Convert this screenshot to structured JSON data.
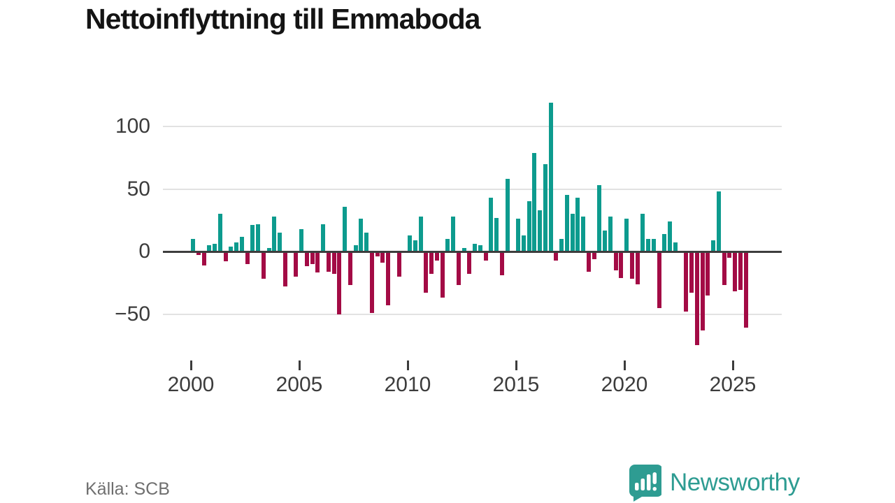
{
  "title": "Nettoinflyttning till Emmaboda",
  "source": "Källa: SCB",
  "brand": {
    "name": "Newsworthy",
    "logo_color": "#2e9c92"
  },
  "colors": {
    "positive_bar": "#0d9b8e",
    "negative_bar": "#a30b45",
    "gridline": "#e2e2e2",
    "zero_line": "#3d3d3d",
    "axis_text": "#3c3c3c",
    "title_text": "#141414",
    "source_text": "#6f6f6f"
  },
  "chart_data": {
    "type": "bar",
    "title": "Nettoinflyttning till Emmaboda",
    "frequency": "quarterly",
    "start_period": "2000 Q1",
    "xlabel": "",
    "ylabel": "",
    "ylim": [
      -80,
      125
    ],
    "yticks": [
      100,
      50,
      0,
      -50
    ],
    "xticks": [
      2000,
      2005,
      2010,
      2015,
      2020,
      2025
    ],
    "grid": true,
    "values": [
      10,
      -3,
      -11,
      5,
      6,
      30,
      -8,
      4,
      7,
      12,
      -10,
      21,
      22,
      -22,
      3,
      28,
      15,
      -28,
      0,
      -20,
      18,
      -12,
      -10,
      -17,
      22,
      -16,
      -18,
      -50,
      36,
      -27,
      5,
      26,
      15,
      -49,
      -4,
      -9,
      -43,
      0,
      -20,
      0,
      13,
      9,
      28,
      -33,
      -18,
      -7,
      -37,
      10,
      28,
      -27,
      3,
      -18,
      6,
      5,
      -7,
      43,
      27,
      -19,
      58,
      0,
      26,
      13,
      40,
      79,
      33,
      70,
      119,
      -7,
      10,
      45,
      30,
      43,
      28,
      -16,
      -6,
      53,
      17,
      28,
      -15,
      -21,
      26,
      -22,
      -26,
      30,
      10,
      10,
      -45,
      14,
      24,
      7,
      0,
      -48,
      -33,
      -75,
      -63,
      -35,
      9,
      48,
      -27,
      -5,
      -32,
      -31,
      -61
    ]
  }
}
